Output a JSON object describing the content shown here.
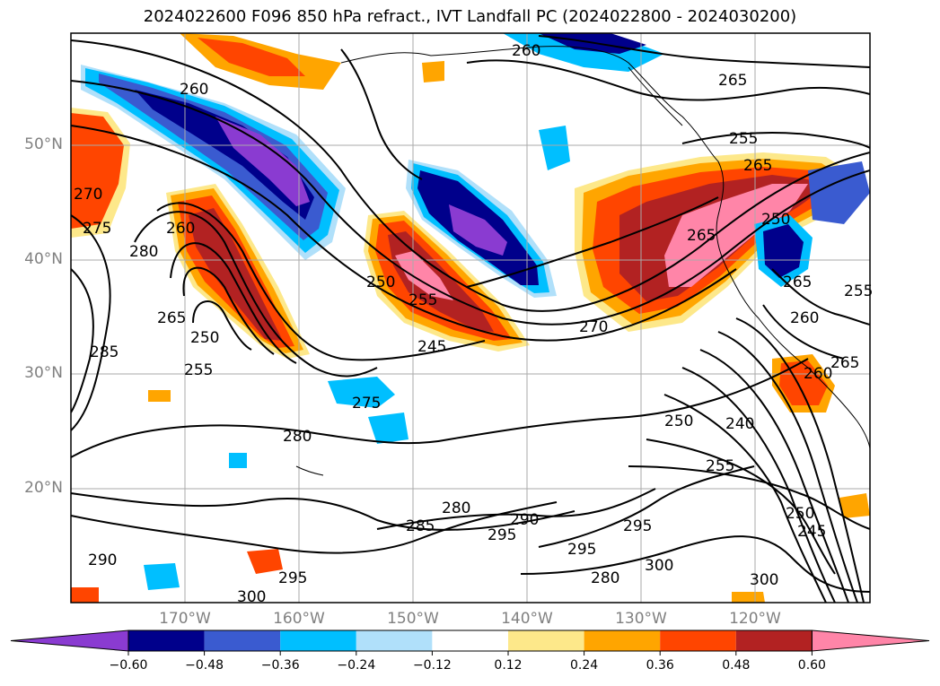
{
  "title": "2024022600 F096 850 hPa refract., IVT Landfall PC (2024022800 - 2024030200)",
  "lat_labels": [
    "50°N",
    "40°N",
    "30°N",
    "20°N"
  ],
  "lon_labels": [
    "170°W",
    "160°W",
    "150°W",
    "140°W",
    "130°W",
    "120°W"
  ],
  "colorbar": {
    "colors": [
      "#8a3bd1",
      "#00008b",
      "#3a5bd0",
      "#00bfff",
      "#b0e0fa",
      "#ffffff",
      "#fde88a",
      "#ffa500",
      "#ff4500",
      "#b22222",
      "#ff85a8"
    ],
    "ticks": [
      "−0.60",
      "−0.48",
      "−0.36",
      "−0.24",
      "−0.12",
      "0.12",
      "0.24",
      "0.36",
      "0.48",
      "0.60"
    ]
  },
  "contour_labels": [
    "260",
    "265",
    "255",
    "260",
    "270",
    "275",
    "260",
    "280",
    "265",
    "285",
    "250",
    "255",
    "250",
    "255",
    "245",
    "270",
    "265",
    "275",
    "280",
    "285",
    "280",
    "290",
    "295",
    "295",
    "295",
    "300",
    "280",
    "300",
    "290",
    "295",
    "300",
    "250",
    "240",
    "255",
    "250",
    "245",
    "260",
    "265",
    "260",
    "265",
    "255",
    "250",
    "265"
  ]
}
